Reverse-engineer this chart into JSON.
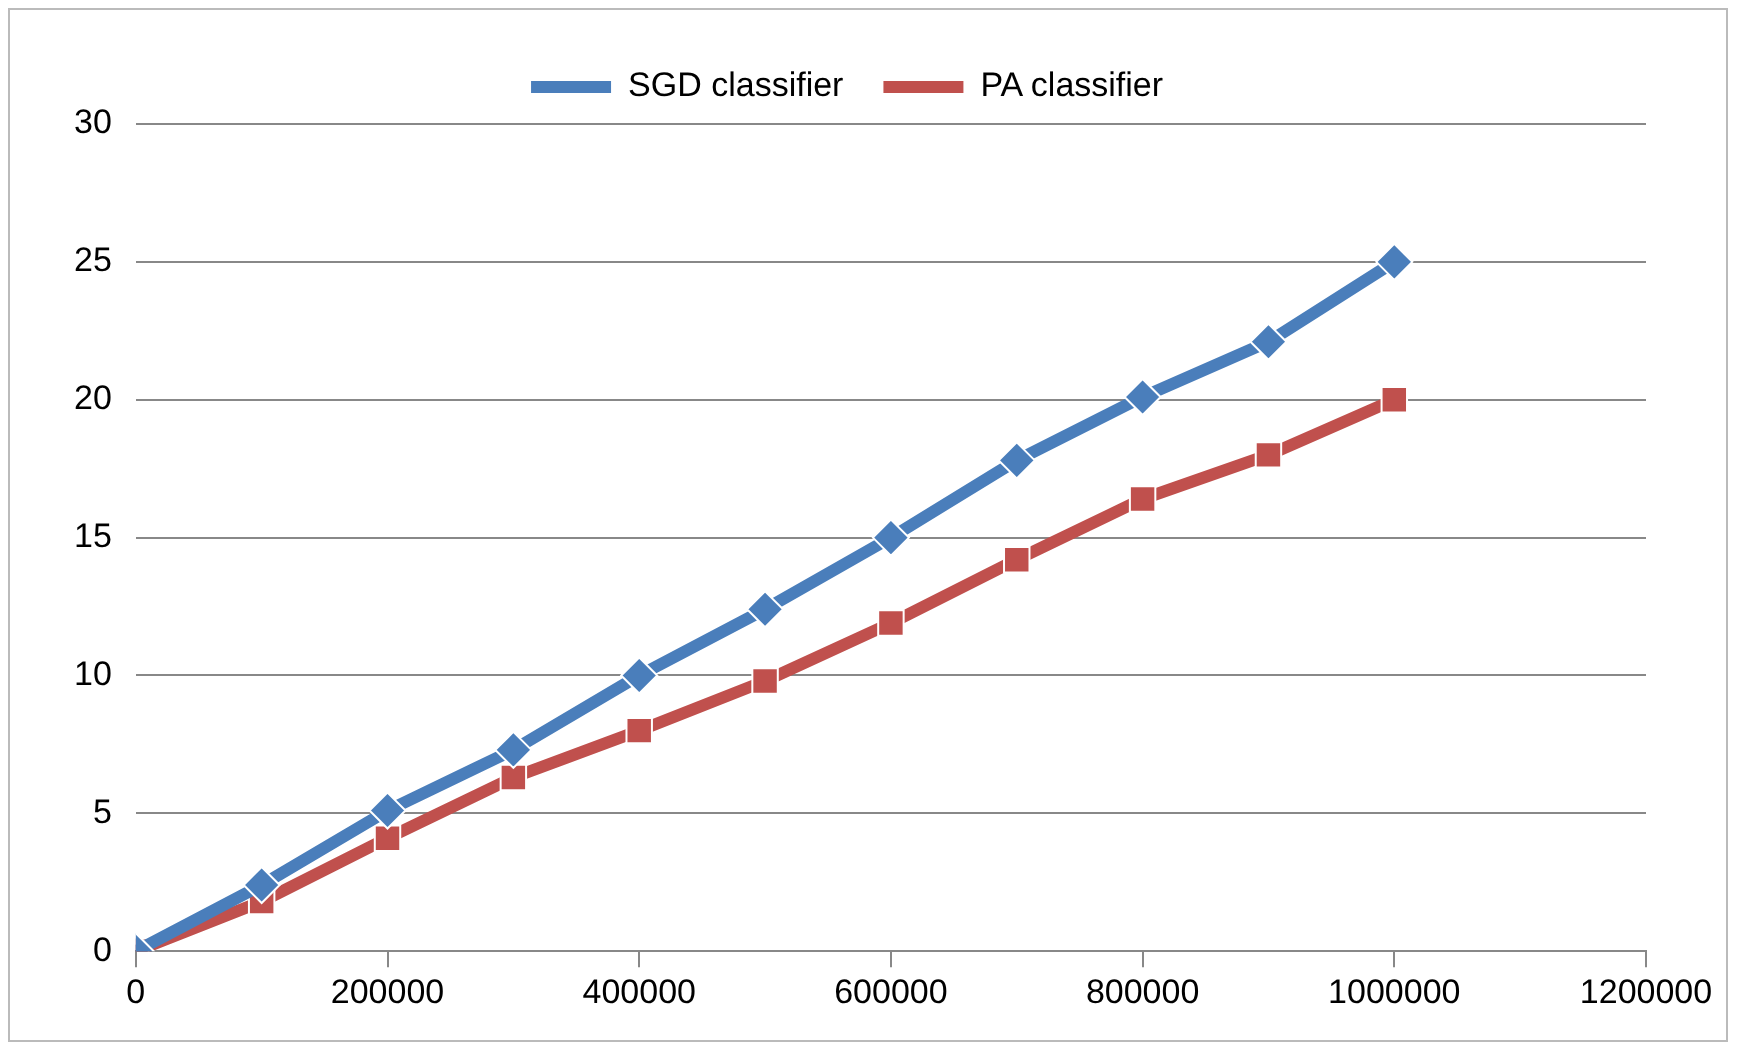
{
  "chart_data": {
    "type": "line",
    "x": [
      0,
      100000,
      200000,
      300000,
      400000,
      500000,
      600000,
      700000,
      800000,
      900000,
      1000000
    ],
    "series": [
      {
        "name": "SGD classifier",
        "color": "#4a7ebb",
        "marker": "diamond",
        "values": [
          0,
          2.4,
          5.1,
          7.3,
          10,
          12.4,
          15,
          17.8,
          20.1,
          22.1,
          25
        ]
      },
      {
        "name": "PA classifier",
        "color": "#c0504d",
        "marker": "square",
        "values": [
          0,
          1.8,
          4.1,
          6.3,
          8,
          9.8,
          11.9,
          14.2,
          16.4,
          18,
          20
        ]
      }
    ],
    "xlim": [
      0,
      1200000
    ],
    "xticks": [
      0,
      200000,
      400000,
      600000,
      800000,
      1000000,
      1200000
    ],
    "ylim": [
      0,
      30
    ],
    "yticks": [
      0,
      5,
      10,
      15,
      20,
      25,
      30
    ],
    "grid": "y",
    "legend": "top",
    "line_style": "solid"
  }
}
